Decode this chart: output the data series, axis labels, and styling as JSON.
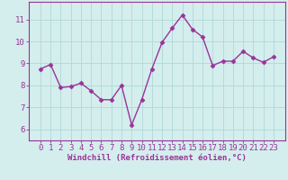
{
  "x": [
    0,
    1,
    2,
    3,
    4,
    5,
    6,
    7,
    8,
    9,
    10,
    11,
    12,
    13,
    14,
    15,
    16,
    17,
    18,
    19,
    20,
    21,
    22,
    23
  ],
  "y": [
    8.75,
    8.95,
    7.9,
    7.95,
    8.1,
    7.75,
    7.35,
    7.35,
    8.0,
    6.2,
    7.35,
    8.75,
    9.95,
    10.6,
    11.2,
    10.55,
    10.2,
    8.9,
    9.1,
    9.1,
    9.55,
    9.25,
    9.05,
    9.3
  ],
  "line_color": "#993399",
  "marker": "D",
  "marker_size": 2.5,
  "line_width": 1.0,
  "bg_color": "#d4eeed",
  "grid_color": "#b0d8d8",
  "xlabel": "Windchill (Refroidissement éolien,°C)",
  "xlabel_color": "#993399",
  "xlabel_fontsize": 6.5,
  "tick_color": "#993399",
  "tick_fontsize": 6.5,
  "ylim": [
    5.5,
    11.8
  ],
  "yticks": [
    6,
    7,
    8,
    9,
    10,
    11
  ],
  "xticks": [
    0,
    1,
    2,
    3,
    4,
    5,
    6,
    7,
    8,
    9,
    10,
    11,
    12,
    13,
    14,
    15,
    16,
    17,
    18,
    19,
    20,
    21,
    22,
    23
  ],
  "spine_color": "#993399",
  "figsize": [
    3.2,
    2.0
  ],
  "dpi": 100
}
